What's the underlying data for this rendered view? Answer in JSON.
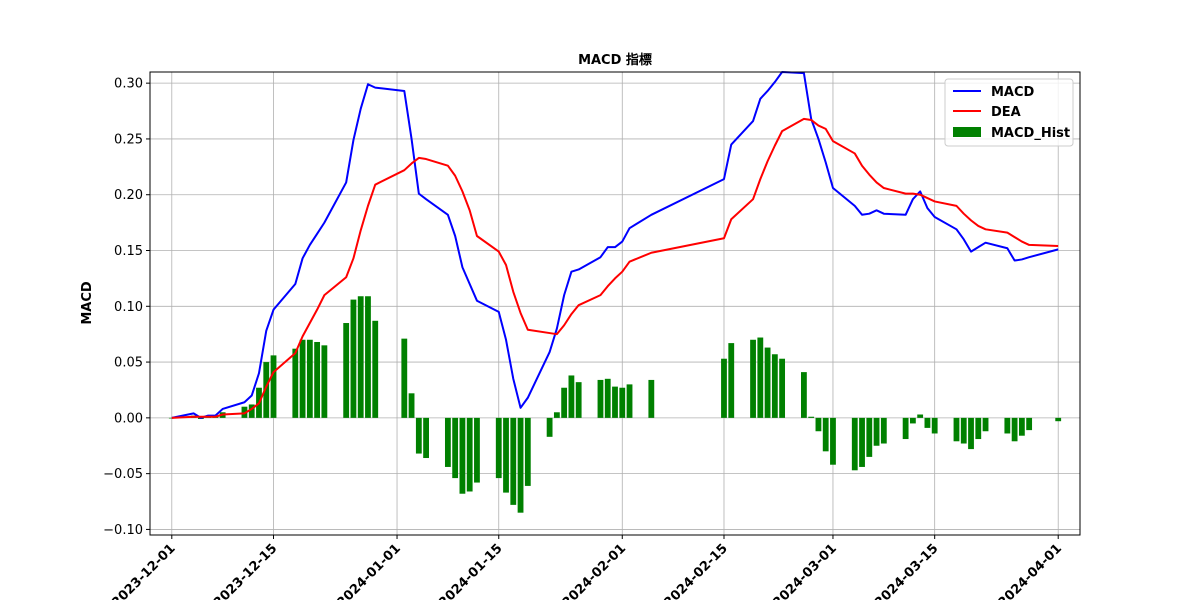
{
  "chart_data": {
    "type": "line",
    "title": "MACD 指標",
    "xlabel": "",
    "ylabel": "MACD",
    "ylim": [
      -0.105,
      0.31
    ],
    "xlim": [
      "2023-11-28",
      "2024-04-04"
    ],
    "grid": true,
    "legend_position": "top-right",
    "y_ticks": [
      -0.1,
      -0.05,
      0.0,
      0.05,
      0.1,
      0.15,
      0.2,
      0.25,
      0.3
    ],
    "y_tick_labels": [
      "−0.10",
      "−0.05",
      "0.00",
      "0.05",
      "0.10",
      "0.15",
      "0.20",
      "0.25",
      "0.30"
    ],
    "x_ticks": [
      "2023-12-01",
      "2023-12-15",
      "2024-01-01",
      "2024-01-15",
      "2024-02-01",
      "2024-02-15",
      "2024-03-01",
      "2024-03-15",
      "2024-04-01"
    ],
    "dates": [
      "2023-12-01",
      "2023-12-04",
      "2023-12-05",
      "2023-12-06",
      "2023-12-07",
      "2023-12-08",
      "2023-12-11",
      "2023-12-12",
      "2023-12-13",
      "2023-12-14",
      "2023-12-15",
      "2023-12-18",
      "2023-12-19",
      "2023-12-20",
      "2023-12-21",
      "2023-12-22",
      "2023-12-25",
      "2023-12-26",
      "2023-12-27",
      "2023-12-28",
      "2023-12-29",
      "2024-01-02",
      "2024-01-03",
      "2024-01-04",
      "2024-01-05",
      "2024-01-08",
      "2024-01-09",
      "2024-01-10",
      "2024-01-11",
      "2024-01-12",
      "2024-01-15",
      "2024-01-16",
      "2024-01-17",
      "2024-01-18",
      "2024-01-19",
      "2024-01-22",
      "2024-01-23",
      "2024-01-24",
      "2024-01-25",
      "2024-01-26",
      "2024-01-29",
      "2024-01-30",
      "2024-01-31",
      "2024-02-01",
      "2024-02-02",
      "2024-02-05",
      "2024-02-15",
      "2024-02-16",
      "2024-02-19",
      "2024-02-20",
      "2024-02-21",
      "2024-02-22",
      "2024-02-23",
      "2024-02-26",
      "2024-02-27",
      "2024-02-28",
      "2024-02-29",
      "2024-03-01",
      "2024-03-04",
      "2024-03-05",
      "2024-03-06",
      "2024-03-07",
      "2024-03-08",
      "2024-03-11",
      "2024-03-12",
      "2024-03-13",
      "2024-03-14",
      "2024-03-15",
      "2024-03-18",
      "2024-03-19",
      "2024-03-20",
      "2024-03-21",
      "2024-03-22",
      "2024-03-25",
      "2024-03-26",
      "2024-03-27",
      "2024-03-28",
      "2024-04-01"
    ],
    "series": [
      {
        "name": "MACD",
        "color": "#0000ff",
        "kind": "line",
        "values": [
          0.0,
          0.004,
          0.0,
          0.002,
          0.002,
          0.008,
          0.014,
          0.02,
          0.04,
          0.078,
          0.097,
          0.12,
          0.143,
          0.155,
          0.165,
          0.175,
          0.211,
          0.249,
          0.277,
          0.299,
          0.296,
          0.293,
          0.25,
          0.201,
          0.196,
          0.182,
          0.163,
          0.135,
          0.12,
          0.105,
          0.095,
          0.07,
          0.035,
          0.009,
          0.018,
          0.059,
          0.08,
          0.11,
          0.131,
          0.133,
          0.144,
          0.153,
          0.153,
          0.158,
          0.17,
          0.182,
          0.214,
          0.245,
          0.266,
          0.286,
          0.293,
          0.301,
          0.31,
          0.309,
          0.268,
          0.25,
          0.229,
          0.206,
          0.19,
          0.182,
          0.183,
          0.186,
          0.183,
          0.182,
          0.196,
          0.203,
          0.188,
          0.18,
          0.169,
          0.16,
          0.149,
          0.153,
          0.157,
          0.152,
          0.141,
          0.142,
          0.144,
          0.151
        ]
      },
      {
        "name": "DEA",
        "color": "#ff0000",
        "kind": "line",
        "values": [
          0.0,
          0.001,
          0.001,
          0.001,
          0.001,
          0.003,
          0.004,
          0.008,
          0.013,
          0.028,
          0.041,
          0.058,
          0.073,
          0.085,
          0.097,
          0.11,
          0.126,
          0.143,
          0.168,
          0.19,
          0.209,
          0.222,
          0.228,
          0.233,
          0.232,
          0.226,
          0.217,
          0.203,
          0.186,
          0.163,
          0.149,
          0.137,
          0.113,
          0.094,
          0.079,
          0.076,
          0.075,
          0.083,
          0.093,
          0.101,
          0.11,
          0.118,
          0.125,
          0.131,
          0.14,
          0.148,
          0.161,
          0.178,
          0.196,
          0.214,
          0.23,
          0.244,
          0.257,
          0.268,
          0.267,
          0.262,
          0.259,
          0.248,
          0.237,
          0.226,
          0.218,
          0.211,
          0.206,
          0.201,
          0.201,
          0.2,
          0.197,
          0.194,
          0.19,
          0.183,
          0.177,
          0.172,
          0.169,
          0.166,
          0.162,
          0.158,
          0.155,
          0.154
        ]
      },
      {
        "name": "MACD_Hist",
        "color": "#008000",
        "kind": "bar",
        "values": [
          0.0,
          0.002,
          -0.001,
          0.001,
          0.002,
          0.005,
          0.01,
          0.012,
          0.027,
          0.05,
          0.056,
          0.062,
          0.07,
          0.07,
          0.068,
          0.065,
          0.085,
          0.106,
          0.109,
          0.109,
          0.087,
          0.071,
          0.022,
          -0.032,
          -0.036,
          -0.044,
          -0.054,
          -0.068,
          -0.066,
          -0.058,
          -0.054,
          -0.067,
          -0.078,
          -0.085,
          -0.061,
          -0.017,
          0.005,
          0.027,
          0.038,
          0.032,
          0.034,
          0.035,
          0.028,
          0.027,
          0.03,
          0.034,
          0.053,
          0.067,
          0.07,
          0.072,
          0.063,
          0.057,
          0.053,
          0.041,
          0.001,
          -0.012,
          -0.03,
          -0.042,
          -0.047,
          -0.044,
          -0.035,
          -0.025,
          -0.023,
          -0.019,
          -0.005,
          0.003,
          -0.009,
          -0.014,
          -0.021,
          -0.023,
          -0.028,
          -0.019,
          -0.012,
          -0.014,
          -0.021,
          -0.016,
          -0.011,
          -0.003
        ]
      }
    ],
    "legend": [
      "MACD",
      "DEA",
      "MACD_Hist"
    ]
  }
}
